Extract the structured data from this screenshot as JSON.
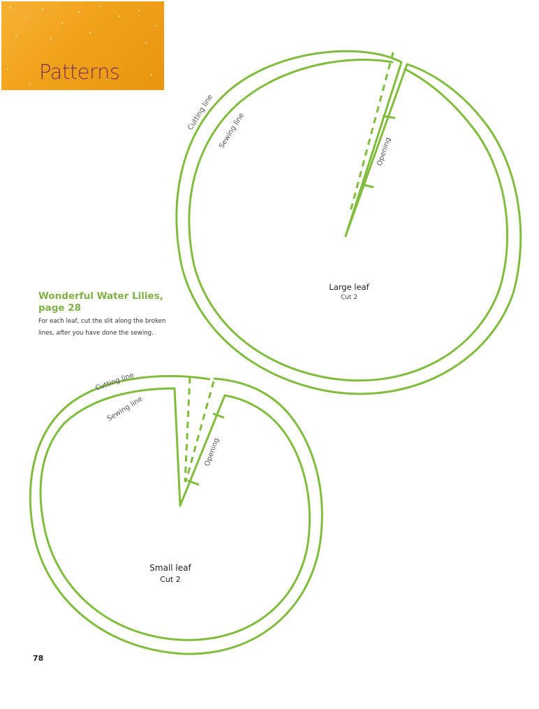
{
  "header": {
    "title": "Patterns"
  },
  "note": {
    "title_line1": "Wonderful Water Lilies,",
    "title_line2": "page 28",
    "body_line1": "For each leaf, cut the slit along the broken",
    "body_line2_italic": "after",
    "body_line2_rest": " you have done the sewing.",
    "body_line2_prefix": "lines, "
  },
  "large_leaf": {
    "name": "Large leaf",
    "instruction": "Cut 2",
    "cutting_label": "Cutting line",
    "sewing_label": "Sewing line",
    "opening_label": "Opening"
  },
  "small_leaf": {
    "name": "Small leaf",
    "instruction": "Cut 2",
    "cutting_label": "Cutting line",
    "sewing_label": "Sewing line",
    "opening_label": "Opening"
  },
  "page_number": "78",
  "colors": {
    "pattern_line": "#82bc3f",
    "banner": "#f0a21b",
    "banner_title": "#7a2f52",
    "note_title": "#80b04a"
  }
}
